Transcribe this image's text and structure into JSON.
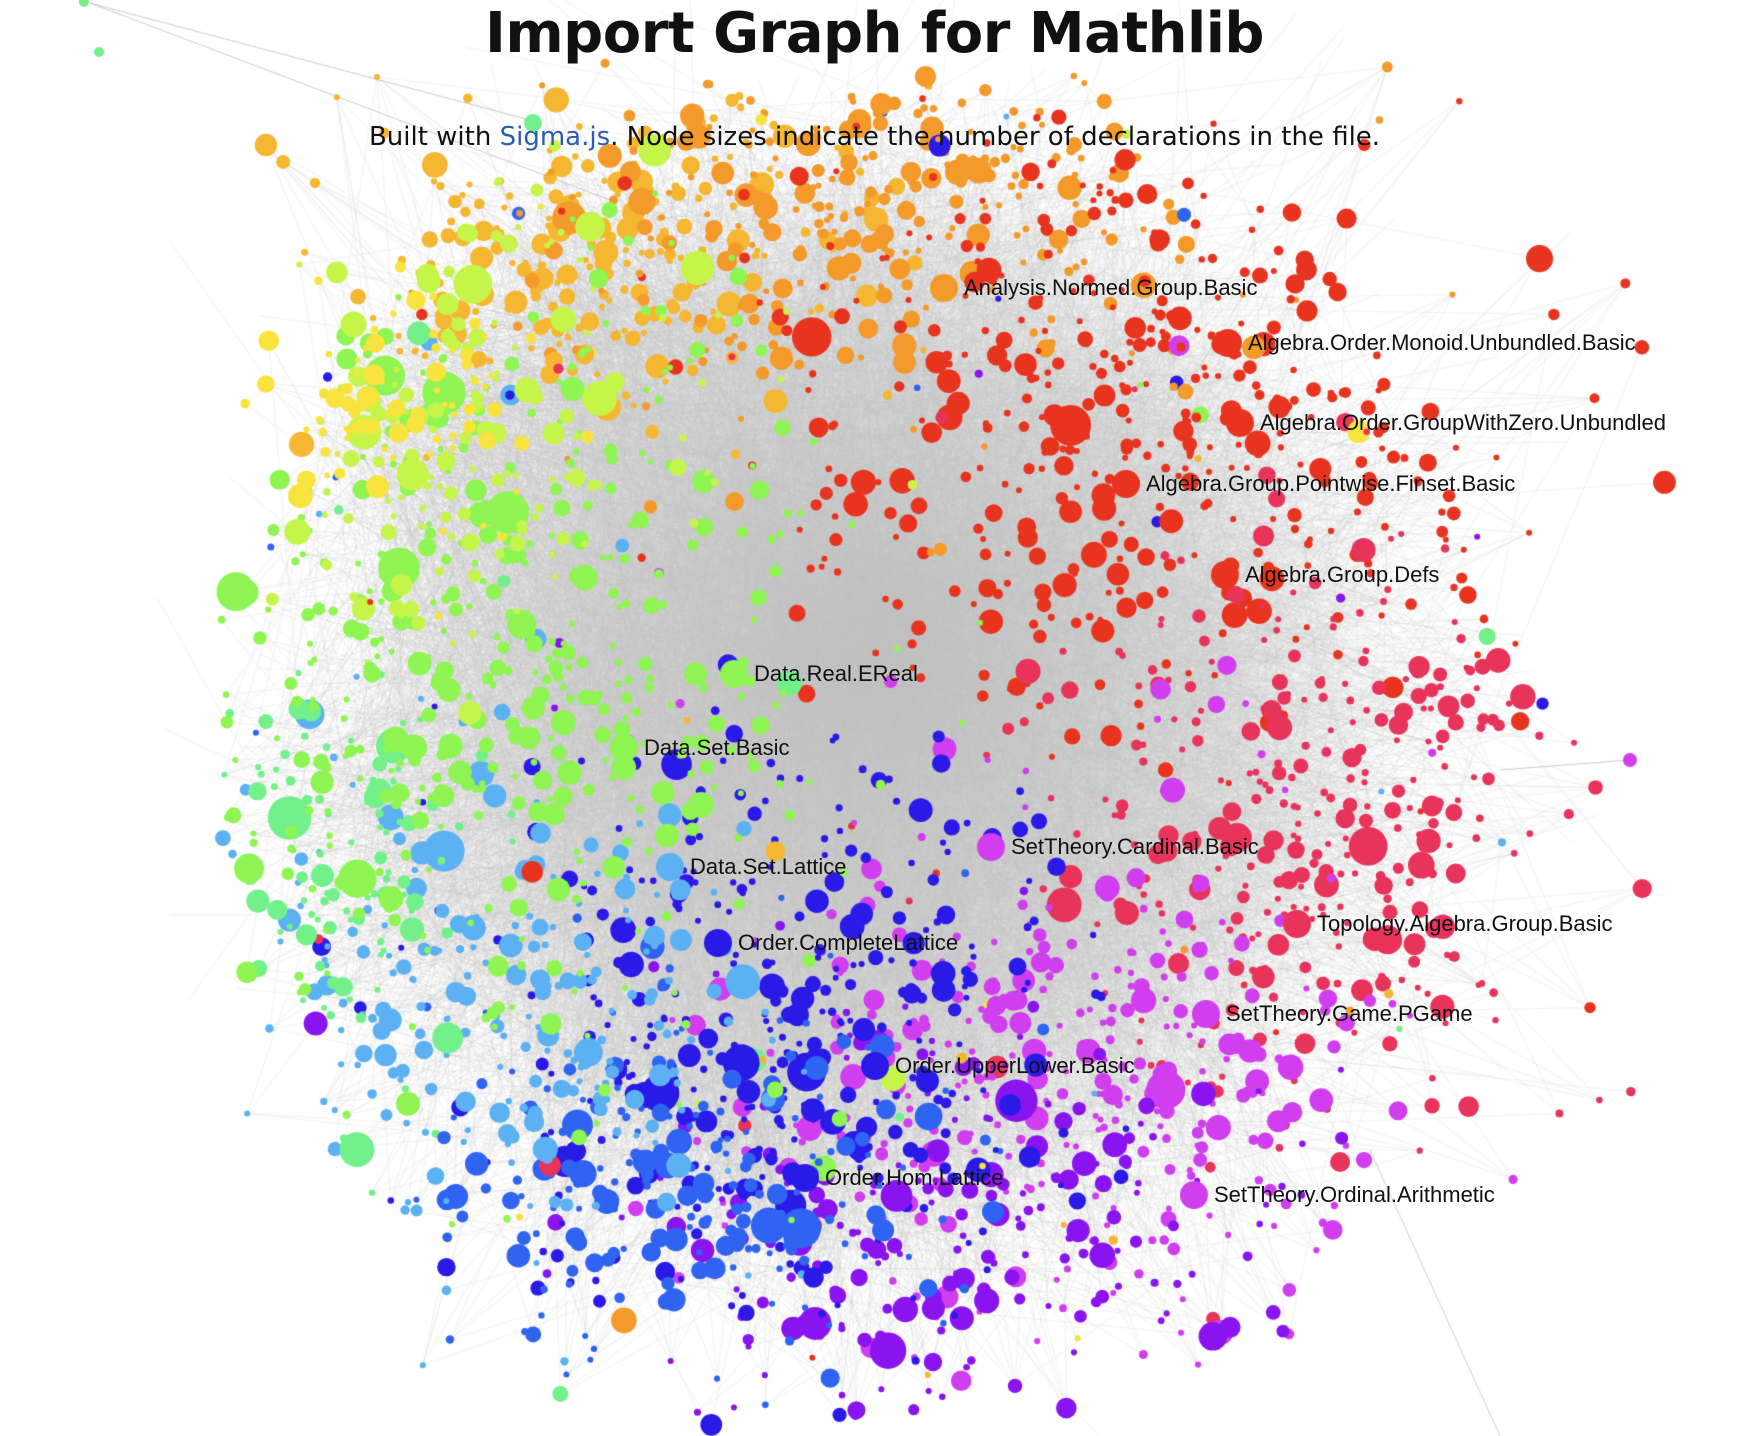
{
  "header": {
    "title": "Import Graph for Mathlib",
    "subtitle_before": "Built with ",
    "subtitle_link": "Sigma.js",
    "subtitle_after": ". Node sizes indicate the number of declarations in the file."
  },
  "graph": {
    "labels": [
      "Analysis.Normed.Group.Basic",
      "Algebra.Order.Monoid.Unbundled.Basic",
      "Algebra.Order.GroupWithZero.Unbundled",
      "Algebra.Group.Pointwise.Finset.Basic",
      "Algebra.Group.Defs",
      "Data.Real.EReal",
      "Data.Set.Basic",
      "SetTheory.Cardinal.Basic",
      "Data.Set.Lattice",
      "Topology.Algebra.Group.Basic",
      "Order.CompleteLattice",
      "SetTheory.Game.PGame",
      "Order.UpperLower.Basic",
      "Order.Hom.Lattice",
      "SetTheory.Ordinal.Arithmetic"
    ],
    "colors": {
      "edge": "#c4c4c4",
      "label_text": "#111111",
      "link": "#2a5db0",
      "clusters": [
        "#f5b731",
        "#f39a2b",
        "#e8341f",
        "#e8345a",
        "#d13ef0",
        "#8a14f0",
        "#2a1ae8",
        "#2f64f2",
        "#5cb1f2",
        "#72f08a",
        "#8ff552",
        "#c6f54a",
        "#f8e43d"
      ]
    }
  }
}
